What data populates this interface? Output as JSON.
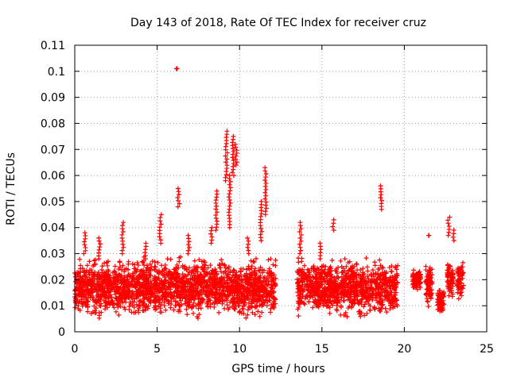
{
  "chart_data": {
    "type": "scatter",
    "title": "Day 143 of 2018, Rate Of TEC Index for receiver cruz",
    "xlabel": "GPS time / hours",
    "ylabel": "ROTI / TECUs",
    "xlim": [
      0,
      25
    ],
    "ylim": [
      0,
      0.11
    ],
    "xticks": [
      "0",
      "5",
      "10",
      "15",
      "20",
      "25"
    ],
    "yticks": [
      "0",
      "0.01",
      "0.02",
      "0.03",
      "0.04",
      "0.05",
      "0.06",
      "0.07",
      "0.08",
      "0.09",
      "0.1",
      "0.11"
    ],
    "grid": true,
    "marker": "plus",
    "color": "#ff0000",
    "data_segments": [
      {
        "x_start": 0.0,
        "x_end": 12.2,
        "y_min": 0.005,
        "y_max": 0.032,
        "y_mean": 0.017
      },
      {
        "x_start": 13.5,
        "x_end": 19.3,
        "y_min": 0.005,
        "y_max": 0.031,
        "y_mean": 0.017
      },
      {
        "x_start": 19.3,
        "x_end": 19.6,
        "y_min": 0.006,
        "y_max": 0.03,
        "y_mean": 0.016
      },
      {
        "x_start": 20.5,
        "x_end": 21.0,
        "y_min": 0.016,
        "y_max": 0.026,
        "y_mean": 0.02
      },
      {
        "x_start": 21.3,
        "x_end": 21.7,
        "y_min": 0.009,
        "y_max": 0.03,
        "y_mean": 0.018
      },
      {
        "x_start": 22.0,
        "x_end": 22.4,
        "y_min": 0.007,
        "y_max": 0.018,
        "y_mean": 0.012
      },
      {
        "x_start": 22.6,
        "x_end": 23.0,
        "y_min": 0.012,
        "y_max": 0.03,
        "y_mean": 0.02
      },
      {
        "x_start": 23.2,
        "x_end": 23.6,
        "y_min": 0.012,
        "y_max": 0.03,
        "y_mean": 0.02
      }
    ],
    "spikes": [
      {
        "x": 0.6,
        "y_from": 0.03,
        "y_to": 0.038
      },
      {
        "x": 1.5,
        "y_from": 0.028,
        "y_to": 0.036
      },
      {
        "x": 2.9,
        "y_from": 0.03,
        "y_to": 0.042
      },
      {
        "x": 4.3,
        "y_from": 0.028,
        "y_to": 0.034
      },
      {
        "x": 5.2,
        "y_from": 0.034,
        "y_to": 0.045
      },
      {
        "x": 6.2,
        "y_from": 0.101,
        "y_to": 0.101
      },
      {
        "x": 6.3,
        "y_from": 0.048,
        "y_to": 0.055
      },
      {
        "x": 6.9,
        "y_from": 0.03,
        "y_to": 0.037
      },
      {
        "x": 8.3,
        "y_from": 0.034,
        "y_to": 0.04
      },
      {
        "x": 8.6,
        "y_from": 0.039,
        "y_to": 0.054
      },
      {
        "x": 9.2,
        "y_from": 0.058,
        "y_to": 0.077
      },
      {
        "x": 9.4,
        "y_from": 0.04,
        "y_to": 0.06
      },
      {
        "x": 9.6,
        "y_from": 0.06,
        "y_to": 0.075
      },
      {
        "x": 9.8,
        "y_from": 0.064,
        "y_to": 0.072
      },
      {
        "x": 10.5,
        "y_from": 0.03,
        "y_to": 0.036
      },
      {
        "x": 11.3,
        "y_from": 0.035,
        "y_to": 0.05
      },
      {
        "x": 11.6,
        "y_from": 0.045,
        "y_to": 0.063
      },
      {
        "x": 13.7,
        "y_from": 0.03,
        "y_to": 0.042
      },
      {
        "x": 14.9,
        "y_from": 0.028,
        "y_to": 0.034
      },
      {
        "x": 15.7,
        "y_from": 0.039,
        "y_to": 0.043
      },
      {
        "x": 18.6,
        "y_from": 0.047,
        "y_to": 0.056
      },
      {
        "x": 21.5,
        "y_from": 0.037,
        "y_to": 0.037
      },
      {
        "x": 22.7,
        "y_from": 0.037,
        "y_to": 0.044
      },
      {
        "x": 23.0,
        "y_from": 0.035,
        "y_to": 0.039
      }
    ]
  }
}
